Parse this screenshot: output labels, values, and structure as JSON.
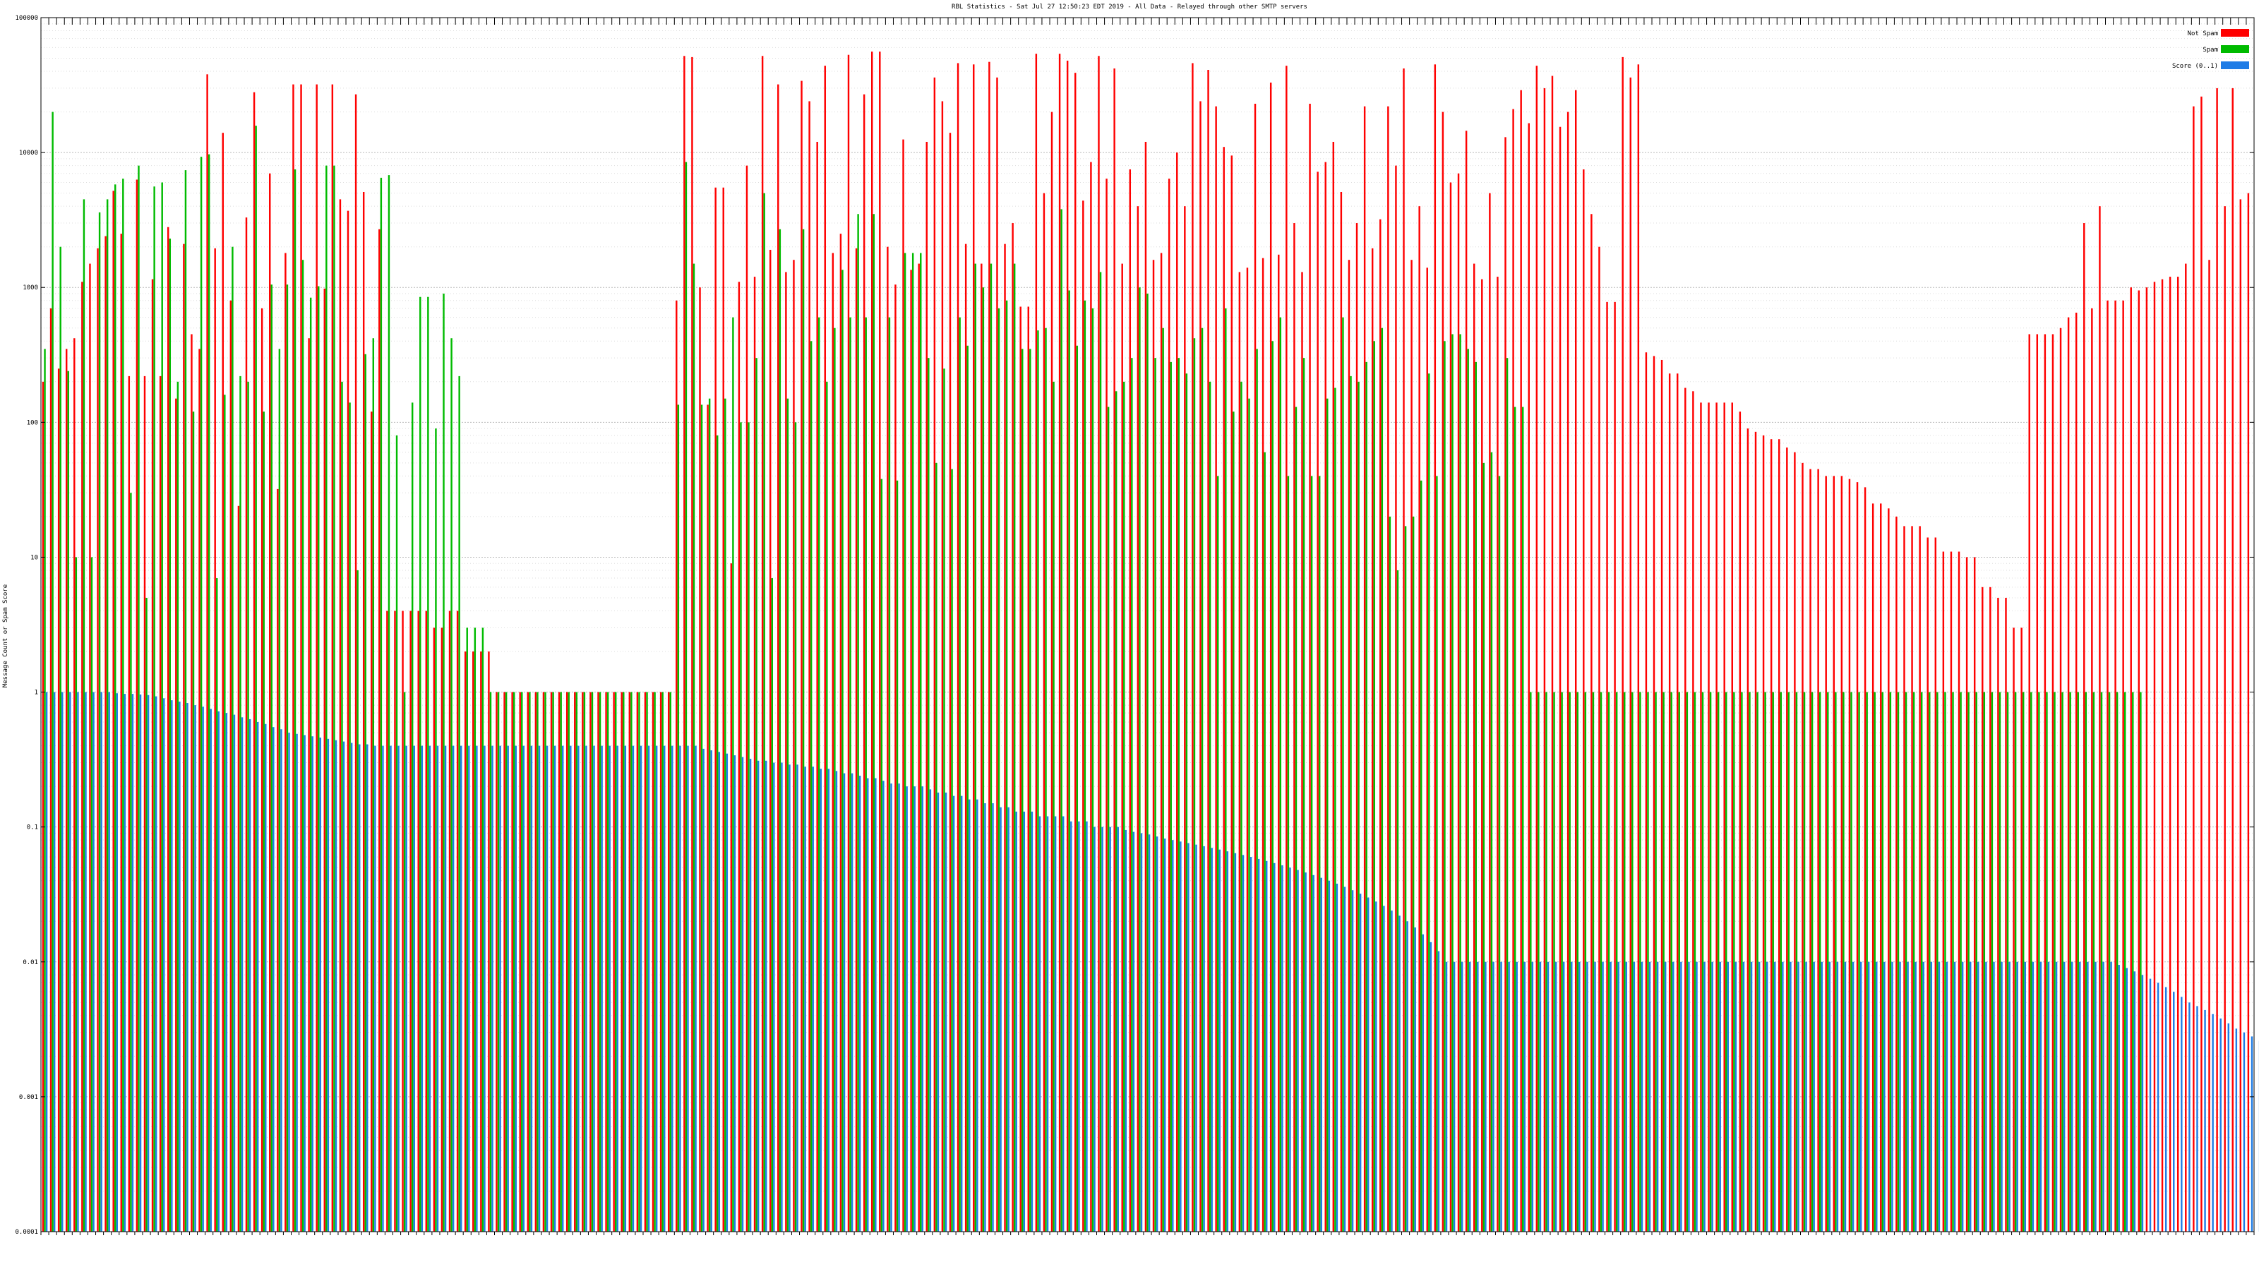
{
  "chart_data": {
    "type": "bar",
    "title": "RBL Statistics - Sat Jul 27 12:50:23 EDT 2019 - All Data - Relayed through other SMTP servers",
    "ylabel": "Message Count or Spam Score",
    "xlabel": "",
    "yscale": "log",
    "ylim": [
      0.0001,
      100000
    ],
    "yticks": [
      0.0001,
      0.001,
      0.01,
      0.1,
      1,
      10,
      100,
      1000,
      10000,
      100000
    ],
    "ytick_labels": [
      "0.0001",
      "0.001",
      "0.01",
      "0.1",
      "1",
      "10",
      "100",
      "1000",
      "10000",
      "100000"
    ],
    "grid": true,
    "legend_position": "top-right",
    "category_label_note": "x-axis category labels are illegible at source resolution",
    "series": [
      {
        "name": "Not Spam",
        "color": "#ff0000",
        "values": [
          200,
          700,
          250,
          350,
          420,
          1100,
          1500,
          1950,
          2400,
          5200,
          2500,
          220,
          6300,
          220,
          1150,
          220,
          2800,
          150,
          2100,
          450,
          350,
          38000,
          1950,
          14000,
          800,
          24,
          3300,
          28000,
          700,
          7000,
          32,
          1800,
          32000,
          32000,
          420,
          32000,
          980,
          32000,
          4500,
          3700,
          27000,
          5100,
          120,
          2700,
          4,
          4,
          4,
          4,
          4,
          4,
          3,
          3,
          4,
          4,
          2,
          2,
          2,
          2,
          1,
          1,
          1,
          1,
          1,
          1,
          1,
          1,
          1,
          1,
          1,
          1,
          1,
          1,
          1,
          1,
          1,
          1,
          1,
          1,
          1,
          1,
          1,
          800,
          52000,
          51000,
          1000,
          135,
          5500,
          5500,
          9,
          1100,
          8000,
          1200,
          52000,
          1900,
          32000,
          1300,
          1600,
          34000,
          24000,
          12000,
          44000,
          1800,
          2500,
          53000,
          1950,
          27000,
          56000,
          56000,
          2000,
          1050,
          12500,
          1350,
          1500,
          12000,
          36000,
          24000,
          14000,
          46000,
          2100,
          45000,
          1500,
          47000,
          36000,
          2100,
          3000,
          720,
          720,
          54000,
          5000,
          20000,
          54000,
          48000,
          39000,
          4400,
          8500,
          52000,
          6400,
          42000,
          1500,
          7500,
          4000,
          12000,
          1600,
          1800,
          6400,
          10000,
          4000,
          46000,
          24000,
          41000,
          22000,
          11000,
          9500,
          1300,
          1400,
          23000,
          1650,
          33000,
          1750,
          44000,
          3000,
          1300,
          23000,
          7200,
          8500,
          12000,
          5100,
          1600,
          3000,
          22000,
          1950,
          3200,
          22000,
          8000,
          42000,
          1600,
          4000,
          1400,
          45000,
          20000,
          6000,
          7000,
          14500,
          1500,
          1150,
          5000,
          1200,
          13000,
          21000,
          29000,
          16500,
          44000,
          30000,
          37000,
          15500,
          20000,
          29000,
          7500,
          3500,
          2000,
          780,
          780,
          51000,
          36000,
          45000,
          330,
          310,
          290,
          230,
          230,
          180,
          170,
          140,
          140,
          140,
          140,
          140,
          120,
          90,
          85,
          80,
          75,
          75,
          65,
          60,
          50,
          45,
          45,
          40,
          40,
          40,
          38,
          36,
          33,
          25,
          25,
          23,
          20,
          17,
          17,
          17,
          14,
          14,
          11,
          11,
          11,
          10,
          10,
          6,
          6,
          5,
          5,
          3,
          3,
          450,
          450,
          450,
          450,
          500,
          600,
          650,
          3000,
          700,
          4000,
          800,
          800,
          800,
          1000,
          950,
          1000,
          1100,
          1150,
          1200,
          1200,
          1500,
          22000,
          26000,
          1600,
          30000,
          4000,
          30000,
          4500,
          5000
        ]
      },
      {
        "name": "Spam",
        "color": "#00bb00",
        "values": [
          350,
          20000,
          2000,
          240,
          10,
          4500,
          10,
          3600,
          4500,
          5800,
          6400,
          30,
          8000,
          5,
          5600,
          6000,
          2300,
          200,
          7400,
          120,
          9300,
          9700,
          7,
          160,
          2000,
          220,
          200,
          15800,
          120,
          1050,
          350,
          1050,
          7500,
          1600,
          840,
          1020,
          8000,
          8000,
          200,
          140,
          8,
          320,
          420,
          6500,
          6800,
          80,
          1,
          140,
          850,
          850,
          90,
          900,
          420,
          220,
          3,
          3,
          3,
          1,
          1,
          1,
          1,
          1,
          1,
          1,
          1,
          1,
          1,
          1,
          1,
          1,
          1,
          1,
          1,
          1,
          1,
          1,
          1,
          1,
          1,
          1,
          1,
          135,
          8500,
          1500,
          135,
          150,
          80,
          150,
          600,
          100,
          100,
          300,
          5000,
          7,
          2700,
          150,
          100,
          2700,
          400,
          600,
          200,
          500,
          1350,
          600,
          3500,
          600,
          3500,
          38,
          600,
          37,
          1800,
          1800,
          1800,
          300,
          50,
          250,
          45,
          600,
          370,
          1500,
          1000,
          1500,
          700,
          800,
          1500,
          350,
          350,
          480,
          500,
          200,
          3800,
          950,
          370,
          800,
          700,
          1300,
          130,
          170,
          200,
          300,
          1000,
          900,
          300,
          500,
          280,
          300,
          230,
          420,
          500,
          200,
          40,
          700,
          120,
          200,
          150,
          350,
          60,
          400,
          600,
          40,
          130,
          300,
          40,
          40,
          150,
          180,
          600,
          220,
          200,
          280,
          400,
          500,
          20,
          8,
          17,
          20,
          37,
          230,
          40,
          400,
          450,
          450,
          350,
          280,
          50,
          60,
          40,
          300,
          130,
          130,
          1,
          1,
          1,
          1,
          1,
          1,
          1,
          1,
          1,
          1,
          1,
          1,
          1,
          1,
          1,
          1,
          1,
          1,
          1,
          1,
          1,
          1,
          1,
          1,
          1,
          1,
          1,
          1,
          1,
          1,
          1,
          1,
          1,
          1,
          1,
          1,
          1,
          1,
          1,
          1,
          1,
          1,
          1,
          1,
          1,
          1,
          1,
          1,
          1,
          1,
          1,
          1,
          1,
          1,
          1,
          1,
          1,
          1,
          1,
          1,
          1,
          1,
          1,
          1,
          1,
          1,
          1,
          1,
          1,
          1,
          1,
          1,
          1,
          1,
          1,
          1,
          1,
          1,
          1
        ]
      },
      {
        "name": "Score (0..1)",
        "color": "#1e7ce6",
        "values": [
          1,
          1,
          1,
          1,
          1,
          1,
          1,
          1,
          1,
          0.98,
          0.97,
          0.97,
          0.96,
          0.95,
          0.93,
          0.9,
          0.87,
          0.85,
          0.83,
          0.8,
          0.78,
          0.75,
          0.72,
          0.7,
          0.68,
          0.65,
          0.63,
          0.6,
          0.58,
          0.55,
          0.53,
          0.5,
          0.49,
          0.48,
          0.47,
          0.46,
          0.45,
          0.44,
          0.43,
          0.42,
          0.41,
          0.41,
          0.4,
          0.4,
          0.4,
          0.4,
          0.4,
          0.4,
          0.4,
          0.4,
          0.4,
          0.4,
          0.4,
          0.4,
          0.4,
          0.4,
          0.4,
          0.4,
          0.4,
          0.4,
          0.4,
          0.4,
          0.4,
          0.4,
          0.4,
          0.4,
          0.4,
          0.4,
          0.4,
          0.4,
          0.4,
          0.4,
          0.4,
          0.4,
          0.4,
          0.4,
          0.4,
          0.4,
          0.4,
          0.4,
          0.4,
          0.4,
          0.4,
          0.4,
          0.38,
          0.37,
          0.36,
          0.35,
          0.34,
          0.33,
          0.32,
          0.31,
          0.31,
          0.3,
          0.3,
          0.29,
          0.29,
          0.28,
          0.28,
          0.27,
          0.27,
          0.26,
          0.25,
          0.25,
          0.24,
          0.23,
          0.23,
          0.22,
          0.21,
          0.21,
          0.2,
          0.2,
          0.2,
          0.19,
          0.18,
          0.18,
          0.17,
          0.17,
          0.16,
          0.16,
          0.15,
          0.15,
          0.14,
          0.14,
          0.13,
          0.13,
          0.13,
          0.12,
          0.12,
          0.12,
          0.12,
          0.11,
          0.11,
          0.11,
          0.1,
          0.1,
          0.1,
          0.1,
          0.095,
          0.092,
          0.09,
          0.088,
          0.085,
          0.082,
          0.08,
          0.078,
          0.076,
          0.074,
          0.072,
          0.07,
          0.068,
          0.066,
          0.064,
          0.062,
          0.06,
          0.058,
          0.056,
          0.054,
          0.052,
          0.05,
          0.048,
          0.046,
          0.044,
          0.042,
          0.04,
          0.038,
          0.036,
          0.034,
          0.032,
          0.03,
          0.028,
          0.026,
          0.024,
          0.022,
          0.02,
          0.018,
          0.016,
          0.014,
          0.012,
          0.01,
          0.01,
          0.01,
          0.01,
          0.01,
          0.01,
          0.01,
          0.01,
          0.01,
          0.01,
          0.01,
          0.01,
          0.01,
          0.01,
          0.01,
          0.01,
          0.01,
          0.01,
          0.01,
          0.01,
          0.01,
          0.01,
          0.01,
          0.01,
          0.01,
          0.01,
          0.01,
          0.01,
          0.01,
          0.01,
          0.01,
          0.01,
          0.01,
          0.01,
          0.01,
          0.01,
          0.01,
          0.01,
          0.01,
          0.01,
          0.01,
          0.01,
          0.01,
          0.01,
          0.01,
          0.01,
          0.01,
          0.01,
          0.01,
          0.01,
          0.01,
          0.01,
          0.01,
          0.01,
          0.01,
          0.01,
          0.01,
          0.01,
          0.01,
          0.01,
          0.01,
          0.01,
          0.01,
          0.01,
          0.01,
          0.01,
          0.01,
          0.01,
          0.01,
          0.01,
          0.01,
          0.01,
          0.01,
          0.01,
          0.01,
          0.01,
          0.01,
          0.01,
          0.01,
          0.01,
          0.01,
          0.01,
          0.01,
          0.01,
          0.01,
          0.01,
          0.0095,
          0.009,
          0.0085,
          0.008,
          0.0075,
          0.007,
          0.0065,
          0.006,
          0.0055,
          0.005,
          0.0047,
          0.0044,
          0.0041,
          0.0038,
          0.0035,
          0.0032,
          0.003,
          0.0028,
          0.0026,
          0.0024,
          0.0022,
          0.002,
          0.0018,
          0.0016,
          0.0014,
          0.0012,
          0.0008,
          0.0007,
          0.0007,
          0.0007
        ]
      }
    ]
  }
}
